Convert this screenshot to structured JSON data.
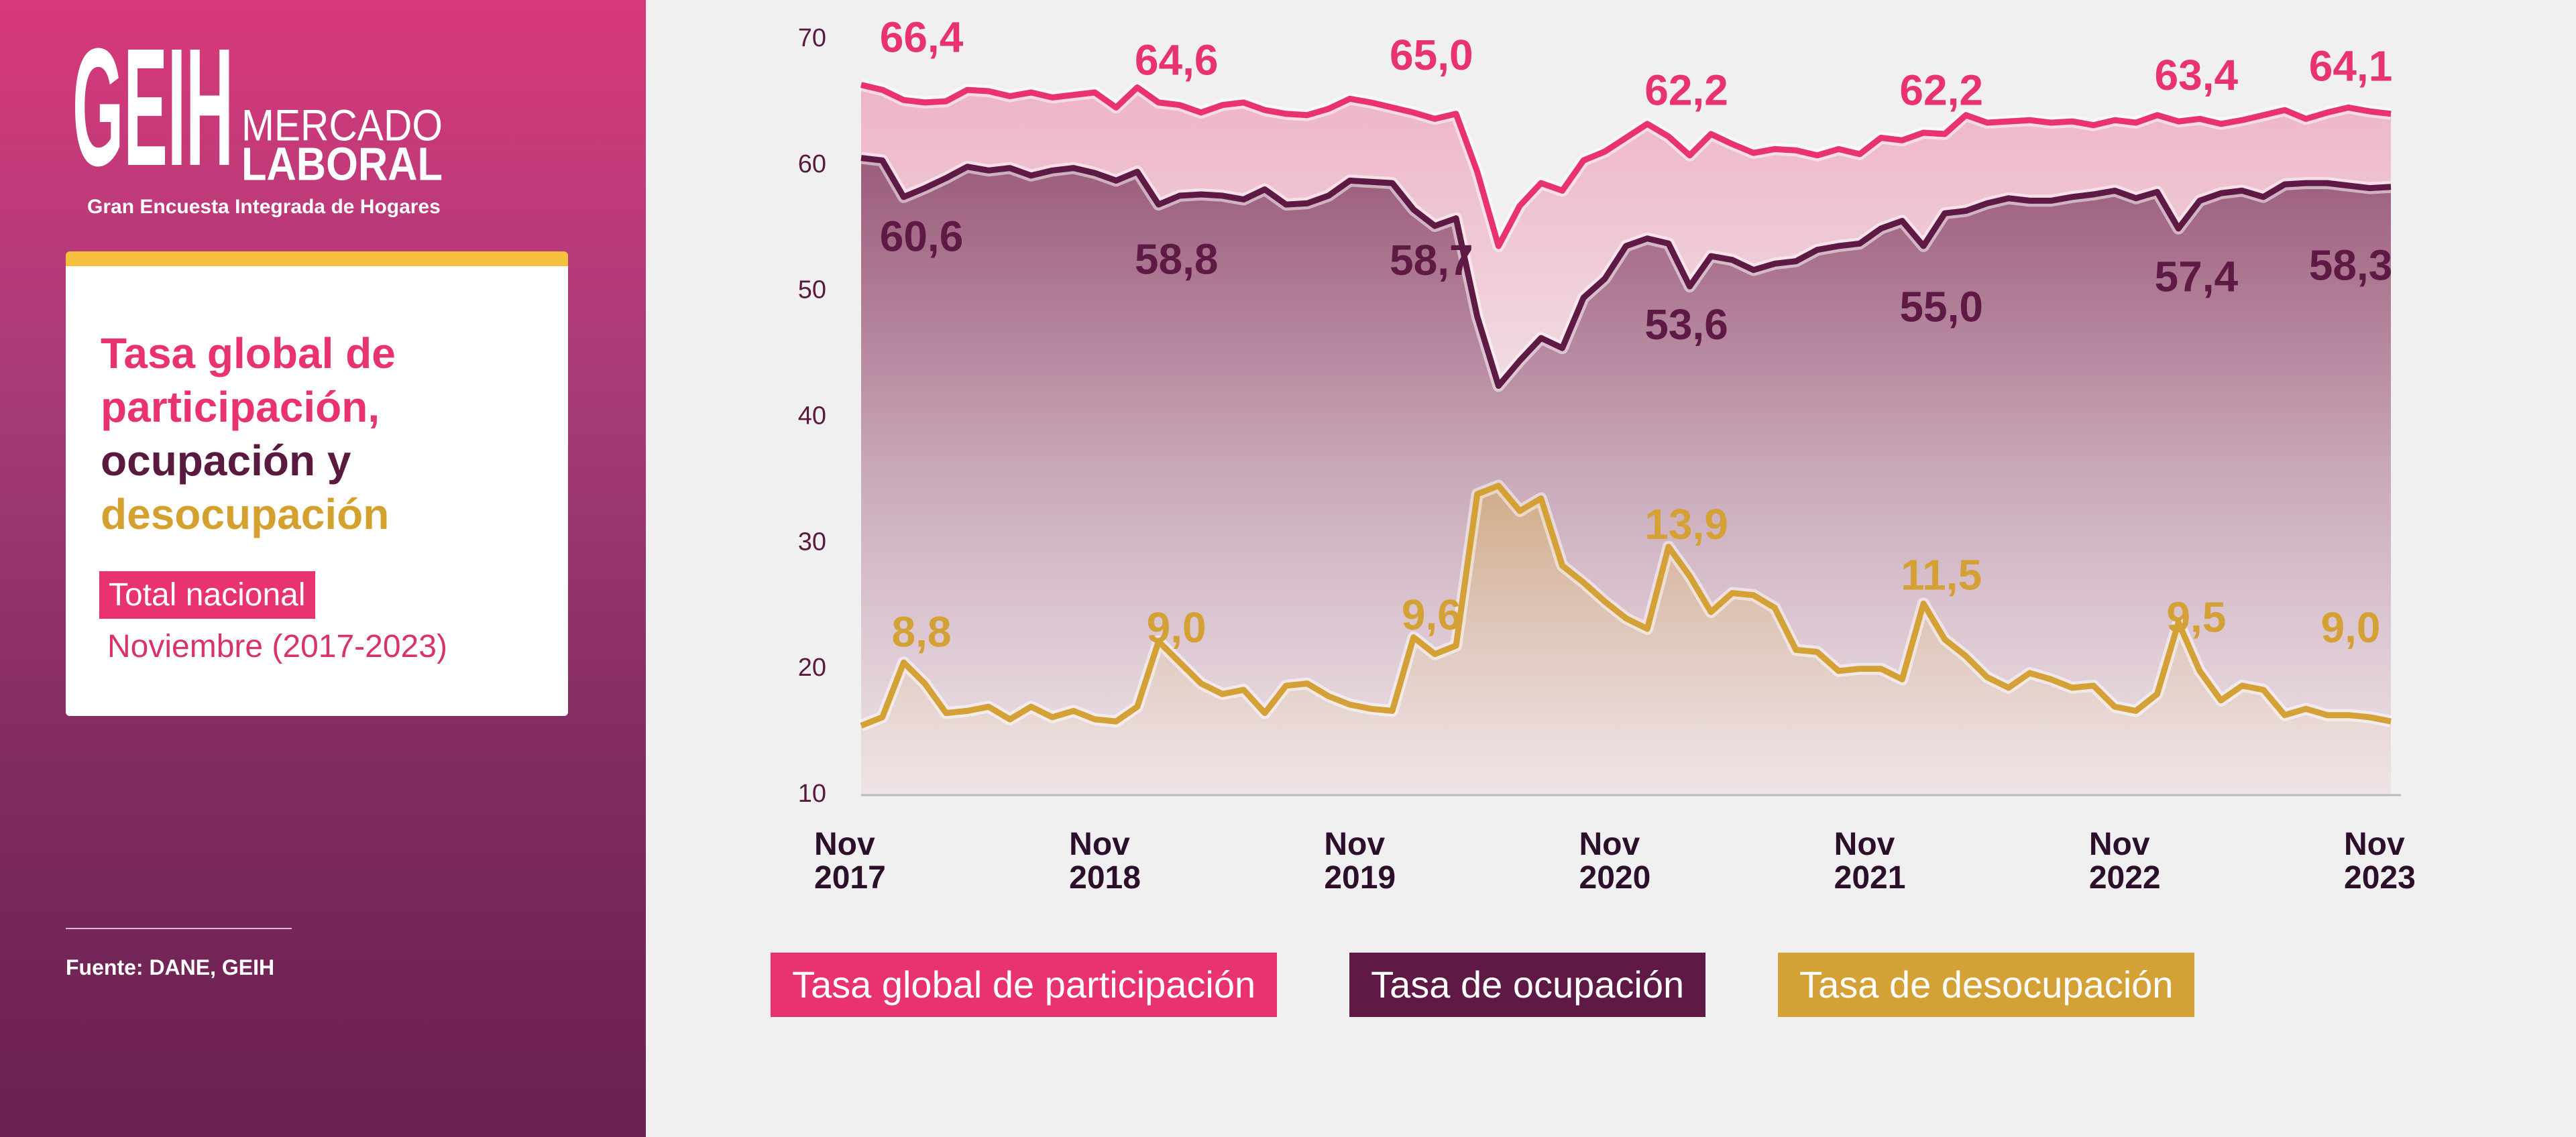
{
  "header": {
    "logo": "GEIH",
    "logo_line1": "MERCADO",
    "logo_line2": "LABORAL",
    "subtitle": "Gran Encuesta Integrada de Hogares"
  },
  "card": {
    "title_parts": [
      "Tasa global de participación,",
      "ocupación y",
      "desocupación"
    ],
    "tag": "Total nacional",
    "period": "Noviembre (2017-2023)"
  },
  "source": "Fuente: DANE, GEIH",
  "chart_data": {
    "type": "line",
    "categories": [
      "Nov 2017",
      null,
      null,
      null,
      null,
      null,
      null,
      null,
      null,
      null,
      null,
      null,
      "Nov 2018",
      null,
      null,
      null,
      null,
      null,
      null,
      null,
      null,
      null,
      null,
      null,
      "Nov 2019",
      null,
      null,
      null,
      null,
      null,
      null,
      null,
      null,
      null,
      null,
      null,
      "Nov 2020",
      null,
      null,
      null,
      null,
      null,
      null,
      null,
      null,
      null,
      null,
      null,
      "Nov 2021",
      null,
      null,
      null,
      null,
      null,
      null,
      null,
      null,
      null,
      null,
      null,
      "Nov 2022",
      null,
      null,
      null,
      null,
      null,
      null,
      null,
      null,
      null,
      null,
      null,
      "Nov 2023"
    ],
    "ylim": [
      10,
      70
    ],
    "yticks": [
      10,
      20,
      30,
      40,
      50,
      60,
      70
    ],
    "y2lim": [
      5.5,
      41.4
    ],
    "area": true,
    "series": [
      {
        "name": "Tasa global de participación",
        "color": "#e8336f",
        "values": [
          66.4,
          66.0,
          65.2,
          65.0,
          65.1,
          66.0,
          65.9,
          65.5,
          65.8,
          65.4,
          65.6,
          65.8,
          64.6,
          66.2,
          65.0,
          64.8,
          64.2,
          64.8,
          65.0,
          64.4,
          64.1,
          64.0,
          64.5,
          65.3,
          65.0,
          64.6,
          64.2,
          63.7,
          64.1,
          59.5,
          53.6,
          56.8,
          58.6,
          58.0,
          60.4,
          61.1,
          62.2,
          63.3,
          62.3,
          60.8,
          62.5,
          61.7,
          61.0,
          61.3,
          61.2,
          60.8,
          61.3,
          60.9,
          62.2,
          62.0,
          62.6,
          62.5,
          64.0,
          63.4,
          63.5,
          63.6,
          63.4,
          63.5,
          63.2,
          63.6,
          63.4,
          64.0,
          63.5,
          63.7,
          63.3,
          63.6,
          64.0,
          64.4,
          63.7,
          64.2,
          64.6,
          64.3,
          64.1
        ],
        "value_labels": [
          "66,4",
          null,
          null,
          null,
          null,
          null,
          null,
          null,
          null,
          null,
          null,
          null,
          "64,6",
          null,
          null,
          null,
          null,
          null,
          null,
          null,
          null,
          null,
          null,
          null,
          "65,0",
          null,
          null,
          null,
          null,
          null,
          null,
          null,
          null,
          null,
          null,
          null,
          "62,2",
          null,
          null,
          null,
          null,
          null,
          null,
          null,
          null,
          null,
          null,
          null,
          "62,2",
          null,
          null,
          null,
          null,
          null,
          null,
          null,
          null,
          null,
          null,
          null,
          "63,4",
          null,
          null,
          null,
          null,
          null,
          null,
          null,
          null,
          null,
          null,
          null,
          "64,1"
        ]
      },
      {
        "name": "Tasa de ocupación",
        "color": "#5e1a44",
        "values": [
          60.6,
          60.4,
          57.5,
          58.2,
          59.0,
          59.9,
          59.6,
          59.8,
          59.2,
          59.6,
          59.8,
          59.4,
          58.8,
          59.5,
          56.9,
          57.6,
          57.7,
          57.6,
          57.3,
          58.1,
          56.9,
          57.0,
          57.6,
          58.8,
          58.7,
          58.6,
          56.5,
          55.2,
          55.8,
          48.0,
          42.5,
          44.5,
          46.3,
          45.5,
          49.5,
          51.0,
          53.6,
          54.2,
          53.8,
          50.4,
          52.8,
          52.5,
          51.7,
          52.2,
          52.4,
          53.3,
          53.6,
          53.8,
          55.0,
          55.6,
          53.6,
          56.2,
          56.4,
          57.0,
          57.4,
          57.2,
          57.2,
          57.5,
          57.7,
          58.0,
          57.4,
          57.9,
          55.0,
          57.2,
          57.8,
          58.0,
          57.5,
          58.5,
          58.6,
          58.6,
          58.4,
          58.2,
          58.3
        ],
        "value_labels": [
          "60,6",
          null,
          null,
          null,
          null,
          null,
          null,
          null,
          null,
          null,
          null,
          null,
          "58,8",
          null,
          null,
          null,
          null,
          null,
          null,
          null,
          null,
          null,
          null,
          null,
          "58,7",
          null,
          null,
          null,
          null,
          null,
          null,
          null,
          null,
          null,
          null,
          null,
          "53,6",
          null,
          null,
          null,
          null,
          null,
          null,
          null,
          null,
          null,
          null,
          null,
          "55,0",
          null,
          null,
          null,
          null,
          null,
          null,
          null,
          null,
          null,
          null,
          null,
          "57,4",
          null,
          null,
          null,
          null,
          null,
          null,
          null,
          null,
          null,
          null,
          null,
          "58,3"
        ]
      },
      {
        "name": "Tasa de desocupación",
        "color": "#d4a136",
        "axis": "y2",
        "values": [
          8.8,
          9.2,
          11.8,
          10.8,
          9.4,
          9.5,
          9.7,
          9.1,
          9.7,
          9.2,
          9.5,
          9.1,
          9.0,
          9.7,
          12.8,
          11.8,
          10.8,
          10.3,
          10.5,
          9.4,
          10.7,
          10.8,
          10.2,
          9.8,
          9.6,
          9.5,
          13.0,
          12.2,
          12.6,
          19.8,
          20.2,
          19.0,
          19.6,
          16.4,
          15.6,
          14.7,
          13.9,
          13.4,
          17.3,
          15.9,
          14.2,
          15.1,
          15.0,
          14.4,
          12.4,
          12.3,
          11.4,
          11.5,
          11.5,
          11.0,
          14.6,
          12.9,
          12.1,
          11.1,
          10.6,
          11.3,
          11.0,
          10.6,
          10.7,
          9.7,
          9.5,
          10.3,
          13.7,
          11.4,
          10.0,
          10.7,
          10.5,
          9.3,
          9.6,
          9.3,
          9.3,
          9.2,
          9.0
        ],
        "value_labels": [
          "8,8",
          null,
          null,
          null,
          null,
          null,
          null,
          null,
          null,
          null,
          null,
          null,
          "9,0",
          null,
          null,
          null,
          null,
          null,
          null,
          null,
          null,
          null,
          null,
          null,
          "9,6",
          null,
          null,
          null,
          null,
          null,
          null,
          null,
          null,
          null,
          null,
          null,
          "13,9",
          null,
          null,
          null,
          null,
          null,
          null,
          null,
          null,
          null,
          null,
          null,
          "11,5",
          null,
          null,
          null,
          null,
          null,
          null,
          null,
          null,
          null,
          null,
          null,
          "9,5",
          null,
          null,
          null,
          null,
          null,
          null,
          null,
          null,
          null,
          null,
          null,
          "9,0"
        ]
      }
    ]
  }
}
